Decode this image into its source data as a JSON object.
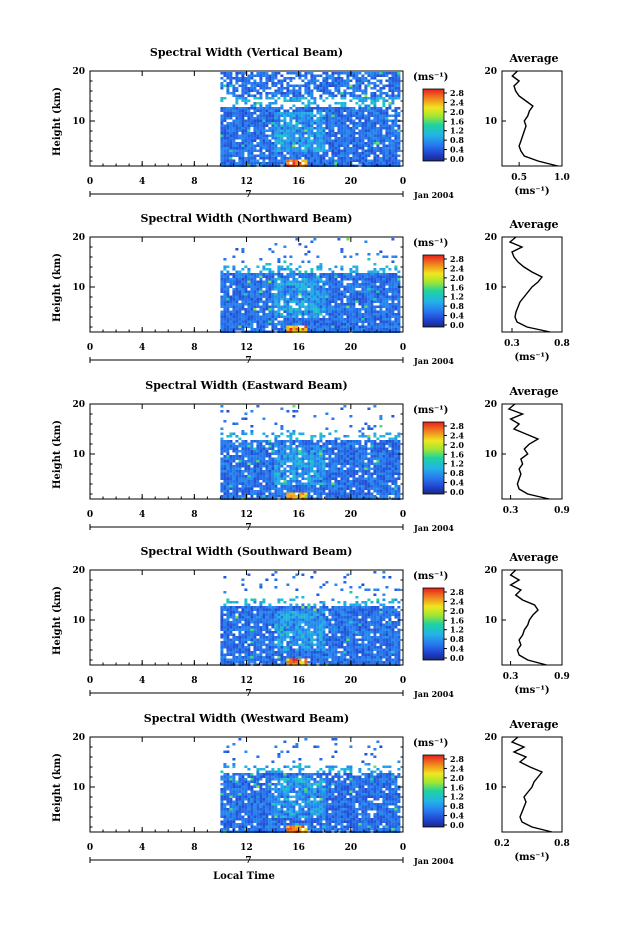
{
  "figure": {
    "x_axis_label": "Local Time",
    "date_label": "Jan 2004",
    "day_label": "7",
    "y_axis_label": "Height (km)",
    "colorbar_unit": "(ms⁻¹)",
    "avg_title": "Average",
    "avg_xlabel": "(ms⁻¹)"
  },
  "chart_data": [
    {
      "type": "heatmap",
      "title": "Spectral Width (Vertical Beam)",
      "xlabel": "Local Time",
      "ylabel": "Height (km)",
      "xlim": [
        0,
        24
      ],
      "x_ticks": [
        "0",
        "4",
        "8",
        "12",
        "16",
        "20",
        "0"
      ],
      "ylim": [
        1,
        20
      ],
      "y_ticks": [
        "10",
        "20"
      ],
      "colorbar_ticks": [
        "2.8",
        "2.4",
        "2.0",
        "1.6",
        "1.2",
        "0.8",
        "0.4",
        "0.0"
      ],
      "data_start_hour": 10,
      "avg_profile": {
        "title": "Average",
        "xlabel": "(ms⁻¹)",
        "xlim": [
          0.3,
          1.0
        ],
        "x_ticks": [
          "0.5",
          "1.0"
        ],
        "y_ticks": [
          "10",
          "20"
        ],
        "height": [
          1,
          2,
          3,
          4,
          5,
          6,
          7,
          8,
          9,
          10,
          11,
          12,
          13,
          14,
          15,
          16,
          17,
          18,
          19,
          20
        ],
        "values": [
          0.95,
          0.72,
          0.56,
          0.52,
          0.5,
          0.52,
          0.54,
          0.56,
          0.58,
          0.56,
          0.6,
          0.62,
          0.66,
          0.58,
          0.5,
          0.46,
          0.44,
          0.5,
          0.42,
          0.48
        ]
      }
    },
    {
      "type": "heatmap",
      "title": "Spectral Width (Northward Beam)",
      "xlabel": "Local Time",
      "ylabel": "Height (km)",
      "xlim": [
        0,
        24
      ],
      "x_ticks": [
        "0",
        "4",
        "8",
        "12",
        "16",
        "20",
        "0"
      ],
      "ylim": [
        1,
        20
      ],
      "y_ticks": [
        "10",
        "20"
      ],
      "colorbar_ticks": [
        "2.8",
        "2.4",
        "2.0",
        "1.6",
        "1.2",
        "0.8",
        "0.4",
        "0.0"
      ],
      "data_start_hour": 10,
      "avg_profile": {
        "title": "Average",
        "xlabel": "(ms⁻¹)",
        "xlim": [
          0.2,
          0.8
        ],
        "x_ticks": [
          "0.3",
          "0.8"
        ],
        "y_ticks": [
          "10",
          "20"
        ],
        "height": [
          1,
          2,
          3,
          4,
          5,
          6,
          7,
          8,
          9,
          10,
          11,
          12,
          13,
          14,
          15,
          16,
          17,
          18,
          19,
          20
        ],
        "values": [
          0.68,
          0.45,
          0.35,
          0.33,
          0.34,
          0.36,
          0.38,
          0.42,
          0.46,
          0.5,
          0.56,
          0.6,
          0.5,
          0.42,
          0.36,
          0.32,
          0.3,
          0.4,
          0.28,
          0.34
        ]
      }
    },
    {
      "type": "heatmap",
      "title": "Spectral Width (Eastward Beam)",
      "xlabel": "Local Time",
      "ylabel": "Height (km)",
      "xlim": [
        0,
        24
      ],
      "x_ticks": [
        "0",
        "4",
        "8",
        "12",
        "16",
        "20",
        "0"
      ],
      "ylim": [
        1,
        20
      ],
      "y_ticks": [
        "10",
        "20"
      ],
      "colorbar_ticks": [
        "2.8",
        "2.4",
        "2.0",
        "1.6",
        "1.2",
        "0.8",
        "0.4",
        "0.0"
      ],
      "data_start_hour": 10,
      "avg_profile": {
        "title": "Average",
        "xlabel": "",
        "xlim": [
          0.2,
          0.9
        ],
        "x_ticks": [
          "0.3",
          "0.9"
        ],
        "y_ticks": [
          "10",
          "20"
        ],
        "height": [
          1,
          2,
          3,
          4,
          5,
          6,
          7,
          8,
          9,
          10,
          11,
          12,
          13,
          14,
          15,
          16,
          17,
          18,
          19,
          20
        ],
        "values": [
          0.75,
          0.5,
          0.4,
          0.38,
          0.4,
          0.42,
          0.4,
          0.44,
          0.42,
          0.5,
          0.46,
          0.52,
          0.62,
          0.48,
          0.34,
          0.4,
          0.3,
          0.44,
          0.28,
          0.35
        ]
      }
    },
    {
      "type": "heatmap",
      "title": "Spectral Width (Southward Beam)",
      "xlabel": "Local Time",
      "ylabel": "Height (km)",
      "xlim": [
        0,
        24
      ],
      "x_ticks": [
        "0",
        "4",
        "8",
        "12",
        "16",
        "20",
        "0"
      ],
      "ylim": [
        1,
        20
      ],
      "y_ticks": [
        "10",
        "20"
      ],
      "colorbar_ticks": [
        "2.8",
        "2.4",
        "2.0",
        "1.6",
        "1.2",
        "0.8",
        "0.4",
        "0.0"
      ],
      "data_start_hour": 10,
      "avg_profile": {
        "title": "Average",
        "xlabel": "(ms⁻¹)",
        "xlim": [
          0.2,
          0.9
        ],
        "x_ticks": [
          "0.3",
          "0.9"
        ],
        "y_ticks": [
          "10",
          "20"
        ],
        "height": [
          1,
          2,
          3,
          4,
          5,
          6,
          7,
          8,
          9,
          10,
          11,
          12,
          13,
          14,
          15,
          16,
          17,
          18,
          19,
          20
        ],
        "values": [
          0.72,
          0.5,
          0.4,
          0.38,
          0.42,
          0.4,
          0.44,
          0.46,
          0.5,
          0.52,
          0.56,
          0.62,
          0.58,
          0.44,
          0.36,
          0.42,
          0.3,
          0.4,
          0.3,
          0.36
        ]
      }
    },
    {
      "type": "heatmap",
      "title": "Spectral Width (Westward Beam)",
      "xlabel": "Local Time",
      "ylabel": "Height (km)",
      "xlim": [
        0,
        24
      ],
      "x_ticks": [
        "0",
        "4",
        "8",
        "12",
        "16",
        "20",
        "0"
      ],
      "ylim": [
        1,
        20
      ],
      "y_ticks": [
        "10",
        "20"
      ],
      "colorbar_ticks": [
        "2.8",
        "2.4",
        "2.0",
        "1.6",
        "1.2",
        "0.8",
        "0.4",
        "0.0"
      ],
      "data_start_hour": 10,
      "avg_profile": {
        "title": "Average",
        "xlabel": "(ms⁻¹)",
        "xlim": [
          0.2,
          0.8
        ],
        "x_ticks": [
          "0.2",
          "0.8"
        ],
        "y_ticks": [
          "10",
          "20"
        ],
        "height": [
          1,
          2,
          3,
          4,
          5,
          6,
          7,
          8,
          9,
          10,
          11,
          12,
          13,
          14,
          15,
          16,
          17,
          18,
          19,
          20
        ],
        "values": [
          0.7,
          0.5,
          0.4,
          0.38,
          0.4,
          0.42,
          0.44,
          0.42,
          0.46,
          0.5,
          0.52,
          0.56,
          0.6,
          0.48,
          0.38,
          0.44,
          0.32,
          0.42,
          0.3,
          0.36
        ]
      }
    }
  ]
}
